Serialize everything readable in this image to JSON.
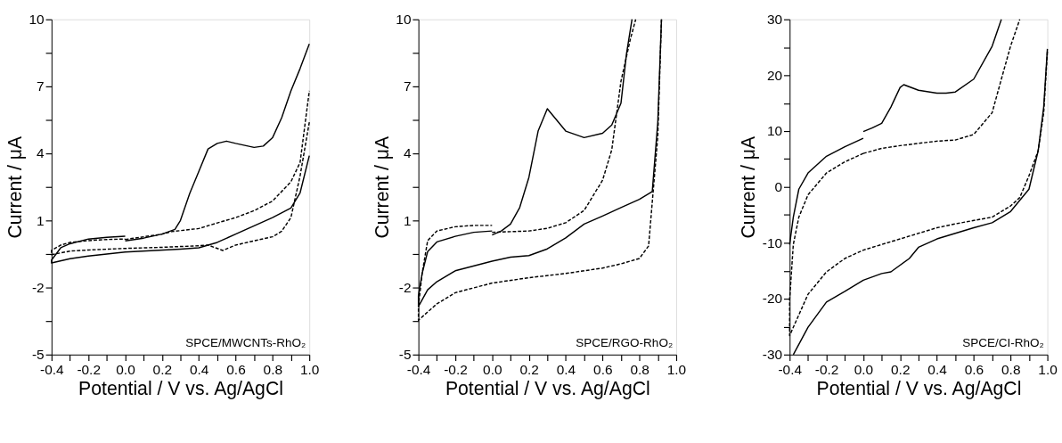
{
  "chart_data": [
    {
      "type": "line",
      "xlabel": "Potential / V vs. Ag/AgCl",
      "ylabel": "Current / μA",
      "annotations": [
        "SPCE/MWCNTs-RhO₂"
      ],
      "xlim": [
        -0.4,
        1.0
      ],
      "ylim": [
        -5,
        10
      ],
      "xticks": [
        -0.4,
        {
          "value": -0.3,
          "label": null
        },
        -0.2,
        {
          "value": -0.1,
          "label": null
        },
        {
          "value": 0,
          "label": "0.0"
        },
        {
          "value": 0.1,
          "label": null
        },
        0.2,
        {
          "value": 0.3,
          "label": null
        },
        0.4,
        {
          "value": 0.5,
          "label": null
        },
        0.6,
        {
          "value": 0.7,
          "label": null
        },
        0.8,
        {
          "value": 0.9,
          "label": null
        },
        {
          "value": 1.0,
          "label": "1.0"
        }
      ],
      "yticks": [
        -5,
        {
          "value": -3.5,
          "label": null
        },
        -2,
        {
          "value": -0.5,
          "label": null
        },
        1,
        {
          "value": 2.5,
          "label": null
        },
        4,
        {
          "value": 5.5,
          "label": null
        },
        7,
        {
          "value": 8.5,
          "label": null
        },
        10
      ],
      "grid": false,
      "marker": "none",
      "series": [
        {
          "color": "#000000",
          "line_style": "solid",
          "x": [
            0.0,
            0.1,
            0.2,
            0.27,
            0.3,
            0.35,
            0.4,
            0.45,
            0.5,
            0.55,
            0.6,
            0.7,
            0.75,
            0.8,
            0.85,
            0.9,
            0.95,
            1.0,
            null,
            1.0,
            0.95,
            0.9,
            0.8,
            0.7,
            0.6,
            0.5,
            0.4,
            0.3,
            0.0,
            -0.2,
            -0.3,
            -0.4,
            -0.4,
            -0.35,
            -0.3,
            -0.2,
            -0.1,
            0.0
          ],
          "values": [
            0.09,
            0.21,
            0.39,
            0.6,
            1.0,
            2.2,
            3.2,
            4.2,
            4.45,
            4.55,
            4.45,
            4.27,
            4.33,
            4.7,
            5.6,
            6.8,
            7.8,
            8.9,
            null,
            3.9,
            2.24,
            1.56,
            1.13,
            0.76,
            0.39,
            0.02,
            -0.22,
            -0.28,
            -0.41,
            -0.59,
            -0.71,
            -0.9,
            -0.77,
            -0.22,
            -0.04,
            0.17,
            0.25,
            0.3
          ]
        },
        {
          "color": "#000000",
          "line_style": "dashed",
          "x": [
            0.0,
            0.2,
            0.25,
            0.4,
            0.5,
            0.6,
            0.7,
            0.8,
            0.9,
            0.95,
            1.0,
            null,
            1.0,
            0.95,
            0.9,
            0.85,
            0.8,
            0.7,
            0.6,
            0.53,
            0.45,
            0.4,
            0.2,
            0.0,
            -0.2,
            -0.3,
            -0.4,
            -0.4,
            -0.35,
            -0.3,
            -0.2,
            -0.1,
            0.0
          ],
          "values": [
            0.15,
            0.39,
            0.5,
            0.64,
            0.89,
            1.13,
            1.44,
            1.87,
            2.73,
            3.6,
            6.8,
            null,
            5.4,
            3.0,
            1.13,
            0.52,
            0.27,
            0.09,
            -0.1,
            -0.34,
            -0.1,
            -0.13,
            -0.2,
            -0.25,
            -0.32,
            -0.37,
            -0.53,
            -0.34,
            -0.1,
            0.02,
            0.1,
            0.15,
            0.17
          ]
        }
      ]
    },
    {
      "type": "line",
      "xlabel": "Potential / V vs. Ag/AgCl",
      "ylabel": "Current / μA",
      "annotations": [
        "SPCE/RGO-RhO₂"
      ],
      "xlim": [
        -0.4,
        1.0
      ],
      "ylim": [
        -5,
        10
      ],
      "xticks": [
        -0.4,
        {
          "value": -0.3,
          "label": null
        },
        -0.2,
        {
          "value": -0.1,
          "label": null
        },
        {
          "value": 0,
          "label": "0.0"
        },
        {
          "value": 0.1,
          "label": null
        },
        0.2,
        {
          "value": 0.3,
          "label": null
        },
        0.4,
        {
          "value": 0.5,
          "label": null
        },
        0.6,
        {
          "value": 0.7,
          "label": null
        },
        0.8,
        {
          "value": 0.9,
          "label": null
        },
        {
          "value": 1.0,
          "label": "1.0"
        }
      ],
      "yticks": [
        -5,
        {
          "value": -3.5,
          "label": null
        },
        -2,
        {
          "value": -0.5,
          "label": null
        },
        1,
        {
          "value": 2.5,
          "label": null
        },
        4,
        {
          "value": 5.5,
          "label": null
        },
        7,
        {
          "value": 8.5,
          "label": null
        },
        10
      ],
      "grid": false,
      "marker": "none",
      "series": [
        {
          "color": "#000000",
          "line_style": "solid",
          "x": [
            0.0,
            0.05,
            0.1,
            0.15,
            0.2,
            0.25,
            0.3,
            0.35,
            0.4,
            0.5,
            0.6,
            0.65,
            0.7,
            0.73,
            0.76,
            null,
            0.92,
            0.9,
            0.87,
            0.8,
            0.7,
            0.6,
            0.5,
            0.4,
            0.3,
            0.2,
            0.1,
            0.0,
            -0.2,
            -0.3,
            -0.35,
            -0.4,
            -0.4,
            -0.38,
            -0.35,
            -0.3,
            -0.2,
            -0.1,
            0.0
          ],
          "values": [
            0.35,
            0.53,
            0.84,
            1.58,
            2.93,
            5.0,
            6.0,
            5.5,
            5.0,
            4.71,
            4.9,
            5.27,
            6.25,
            8.46,
            10,
            null,
            10,
            5.4,
            2.3,
            1.95,
            1.58,
            1.2,
            0.84,
            0.22,
            -0.27,
            -0.57,
            -0.64,
            -0.82,
            -1.25,
            -1.74,
            -2.1,
            -2.85,
            -2.36,
            -1.37,
            -0.39,
            0.04,
            0.29,
            0.47,
            0.53
          ]
        },
        {
          "color": "#000000",
          "line_style": "dashed",
          "x": [
            0.0,
            0.2,
            0.3,
            0.4,
            0.5,
            0.6,
            0.65,
            0.7,
            0.75,
            0.78,
            null,
            0.92,
            0.9,
            0.85,
            0.8,
            0.7,
            0.6,
            0.4,
            0.2,
            0.0,
            -0.2,
            -0.3,
            -0.4,
            -0.4,
            -0.38,
            -0.35,
            -0.3,
            -0.2,
            -0.1,
            0.0
          ],
          "values": [
            0.47,
            0.53,
            0.65,
            0.9,
            1.45,
            2.8,
            4.16,
            7.23,
            9.08,
            10,
            null,
            10,
            4.77,
            -0.14,
            -0.7,
            -0.94,
            -1.13,
            -1.37,
            -1.56,
            -1.8,
            -2.23,
            -2.73,
            -3.46,
            -2.85,
            -1.37,
            0.1,
            0.53,
            0.72,
            0.78,
            0.78
          ]
        }
      ]
    },
    {
      "type": "line",
      "xlabel": "Potential / V vs. Ag/AgCl",
      "ylabel": "Current / μA",
      "annotations": [
        "SPCE/CI-RhO₂"
      ],
      "xlim": [
        -0.4,
        1.0
      ],
      "ylim": [
        -30,
        30
      ],
      "xticks": [
        -0.4,
        {
          "value": -0.3,
          "label": null
        },
        -0.2,
        {
          "value": -0.1,
          "label": null
        },
        {
          "value": 0,
          "label": "0.0"
        },
        {
          "value": 0.1,
          "label": null
        },
        0.2,
        {
          "value": 0.3,
          "label": null
        },
        0.4,
        {
          "value": 0.5,
          "label": null
        },
        0.6,
        {
          "value": 0.7,
          "label": null
        },
        0.8,
        {
          "value": 0.9,
          "label": null
        },
        {
          "value": 1.0,
          "label": "1.0"
        }
      ],
      "yticks": [
        -30,
        {
          "value": -25,
          "label": null
        },
        -20,
        {
          "value": -15,
          "label": null
        },
        -10,
        {
          "value": -5,
          "label": null
        },
        0,
        {
          "value": 5,
          "label": null
        },
        10,
        {
          "value": 15,
          "label": null
        },
        20,
        {
          "value": 25,
          "label": null
        },
        30
      ],
      "grid": false,
      "marker": "none",
      "series": [
        {
          "color": "#000000",
          "line_style": "solid",
          "x": [
            0.0,
            0.05,
            0.1,
            0.15,
            0.2,
            0.22,
            0.3,
            0.4,
            0.45,
            0.5,
            0.6,
            0.7,
            0.75,
            null,
            1.0,
            0.98,
            0.95,
            0.9,
            0.8,
            0.7,
            0.6,
            0.5,
            0.4,
            0.3,
            0.25,
            0.15,
            0.1,
            0.0,
            -0.1,
            -0.2,
            -0.3,
            -0.38,
            null,
            -0.4,
            -0.38,
            -0.35,
            -0.3,
            -0.2,
            -0.1,
            0.0
          ],
          "values": [
            9.9,
            10.6,
            11.4,
            14.3,
            17.8,
            18.3,
            17.3,
            16.8,
            16.8,
            17.0,
            19.3,
            25.2,
            30,
            null,
            24.7,
            14.3,
            6.5,
            -0.4,
            -4.4,
            -6.4,
            -7.3,
            -8.3,
            -9.3,
            -10.8,
            -12.8,
            -15.2,
            -15.5,
            -16.7,
            -18.7,
            -20.6,
            -25.1,
            -30,
            null,
            -10.3,
            -5.4,
            -0.4,
            2.5,
            5.5,
            7.2,
            8.7
          ]
        },
        {
          "color": "#000000",
          "line_style": "dashed",
          "x": [
            0.0,
            0.1,
            0.2,
            0.4,
            0.5,
            0.6,
            0.7,
            0.75,
            0.8,
            0.85,
            null,
            1.0,
            0.98,
            0.95,
            0.9,
            0.85,
            0.8,
            0.7,
            0.5,
            0.4,
            0.2,
            0.0,
            -0.1,
            -0.2,
            -0.3,
            -0.4,
            -0.4,
            -0.38,
            -0.35,
            -0.3,
            -0.2,
            -0.1,
            0.0
          ],
          "values": [
            6.0,
            6.9,
            7.4,
            8.2,
            8.4,
            9.4,
            13.3,
            19.3,
            25.2,
            30,
            null,
            24.2,
            13.3,
            6.5,
            2.0,
            -1.9,
            -3.4,
            -5.4,
            -6.6,
            -7.3,
            -9.3,
            -11.3,
            -12.8,
            -15.2,
            -19.2,
            -26.6,
            -20.1,
            -10.3,
            -5.4,
            -1.4,
            2.5,
            4.5,
            6.0
          ]
        }
      ]
    }
  ]
}
